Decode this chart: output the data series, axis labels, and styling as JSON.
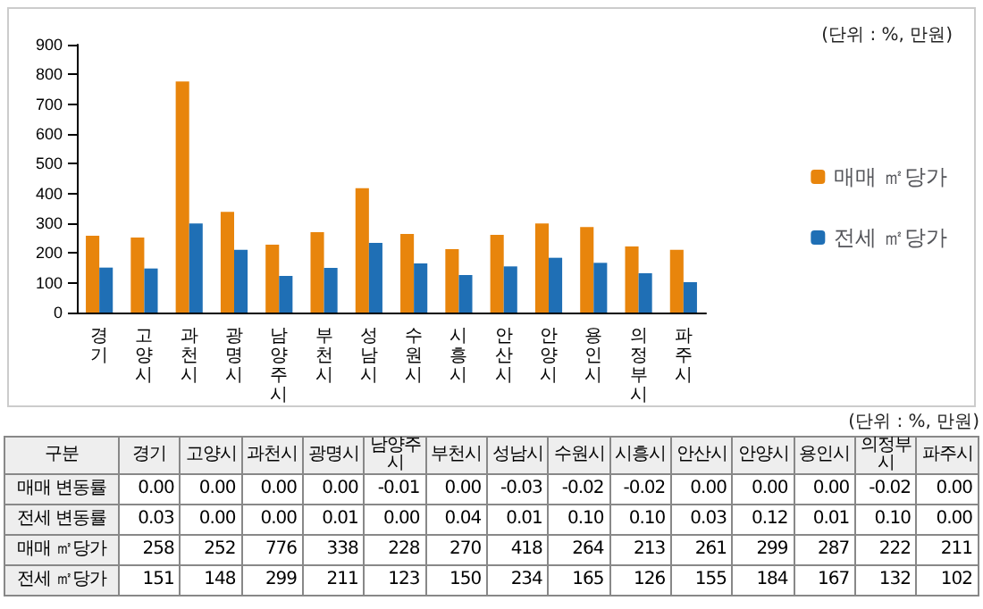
{
  "chart_data": [
    {
      "type": "bar",
      "annotations": [
        "(단위 : %, 만원)"
      ],
      "categories": [
        "경기",
        "고양시",
        "과천시",
        "광명시",
        "남양주시",
        "부천시",
        "성남시",
        "수원시",
        "시흥시",
        "안산시",
        "안양시",
        "용인시",
        "의정부시",
        "파주시"
      ],
      "series": [
        {
          "name": "매매 ㎡당가",
          "color": "#e8850c",
          "values": [
            258,
            252,
            776,
            338,
            228,
            270,
            418,
            264,
            213,
            261,
            299,
            287,
            222,
            211
          ]
        },
        {
          "name": "전세 ㎡당가",
          "color": "#1f6fb5",
          "values": [
            151,
            148,
            299,
            211,
            123,
            150,
            234,
            165,
            126,
            155,
            184,
            167,
            132,
            102
          ]
        }
      ],
      "ylim": [
        0,
        900
      ],
      "yticks": [
        0,
        100,
        200,
        300,
        400,
        500,
        600,
        700,
        800,
        900
      ],
      "legend": "right",
      "grid": false
    },
    {
      "type": "other",
      "annotations": [
        "(단위 : %, 만원)"
      ],
      "ylabel": "구분",
      "categories": [
        "경기",
        "고양시",
        "과천시",
        "광명시",
        "남양주시",
        "부천시",
        "성남시",
        "수원시",
        "시흥시",
        "안산시",
        "안양시",
        "용인시",
        "의정부시",
        "파주시"
      ],
      "series": [
        {
          "name": "매매 변동률",
          "values": [
            0.0,
            0.0,
            0.0,
            0.0,
            -0.01,
            0.0,
            -0.03,
            -0.02,
            -0.02,
            0.0,
            0.0,
            0.0,
            -0.02,
            0.0
          ],
          "value_labels": [
            "0.00",
            "0.00",
            "0.00",
            "0.00",
            "-0.01",
            "0.00",
            "-0.03",
            "-0.02",
            "-0.02",
            "0.00",
            "0.00",
            "0.00",
            "-0.02",
            "0.00"
          ]
        },
        {
          "name": "전세 변동률",
          "values": [
            0.03,
            0.0,
            0.0,
            0.01,
            0.0,
            0.04,
            0.01,
            0.1,
            0.1,
            0.03,
            0.12,
            0.01,
            0.1,
            0.0
          ],
          "value_labels": [
            "0.03",
            "0.00",
            "0.00",
            "0.01",
            "0.00",
            "0.04",
            "0.01",
            "0.10",
            "0.10",
            "0.03",
            "0.12",
            "0.01",
            "0.10",
            "0.00"
          ]
        },
        {
          "name": "매매 ㎡당가",
          "values": [
            258,
            252,
            776,
            338,
            228,
            270,
            418,
            264,
            213,
            261,
            299,
            287,
            222,
            211
          ],
          "value_labels": [
            "258",
            "252",
            "776",
            "338",
            "228",
            "270",
            "418",
            "264",
            "213",
            "261",
            "299",
            "287",
            "222",
            "211"
          ]
        },
        {
          "name": "전세 ㎡당가",
          "values": [
            151,
            148,
            299,
            211,
            123,
            150,
            234,
            165,
            126,
            155,
            184,
            167,
            132,
            102
          ],
          "value_labels": [
            "151",
            "148",
            "299",
            "211",
            "123",
            "150",
            "234",
            "165",
            "126",
            "155",
            "184",
            "167",
            "132",
            "102"
          ]
        }
      ]
    }
  ]
}
